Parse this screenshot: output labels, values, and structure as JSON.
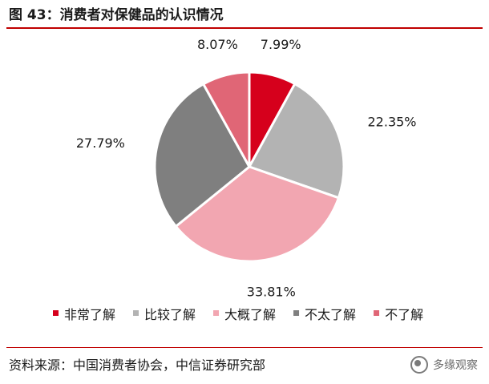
{
  "header": {
    "title": "图 43：消费者对保健品的认识情况"
  },
  "footer": {
    "source": "资料来源：中国消费者协会，中信证券研究部"
  },
  "watermark": {
    "text": "多缘观察",
    "icon": "wechat-icon"
  },
  "chart_data": {
    "type": "pie",
    "start_angle_deg": 0,
    "direction": "clockwise",
    "legend_position": "bottom",
    "categories": [
      "非常了解",
      "比较了解",
      "大概了解",
      "不太了解",
      "不了解"
    ],
    "values": [
      7.99,
      22.35,
      33.81,
      27.79,
      8.07
    ],
    "labels": [
      "7.99%",
      "22.35%",
      "33.81%",
      "27.79%",
      "8.07%"
    ],
    "colors": [
      "#d6001c",
      "#b3b3b3",
      "#f2a6b1",
      "#7f7f7f",
      "#e06676"
    ]
  }
}
